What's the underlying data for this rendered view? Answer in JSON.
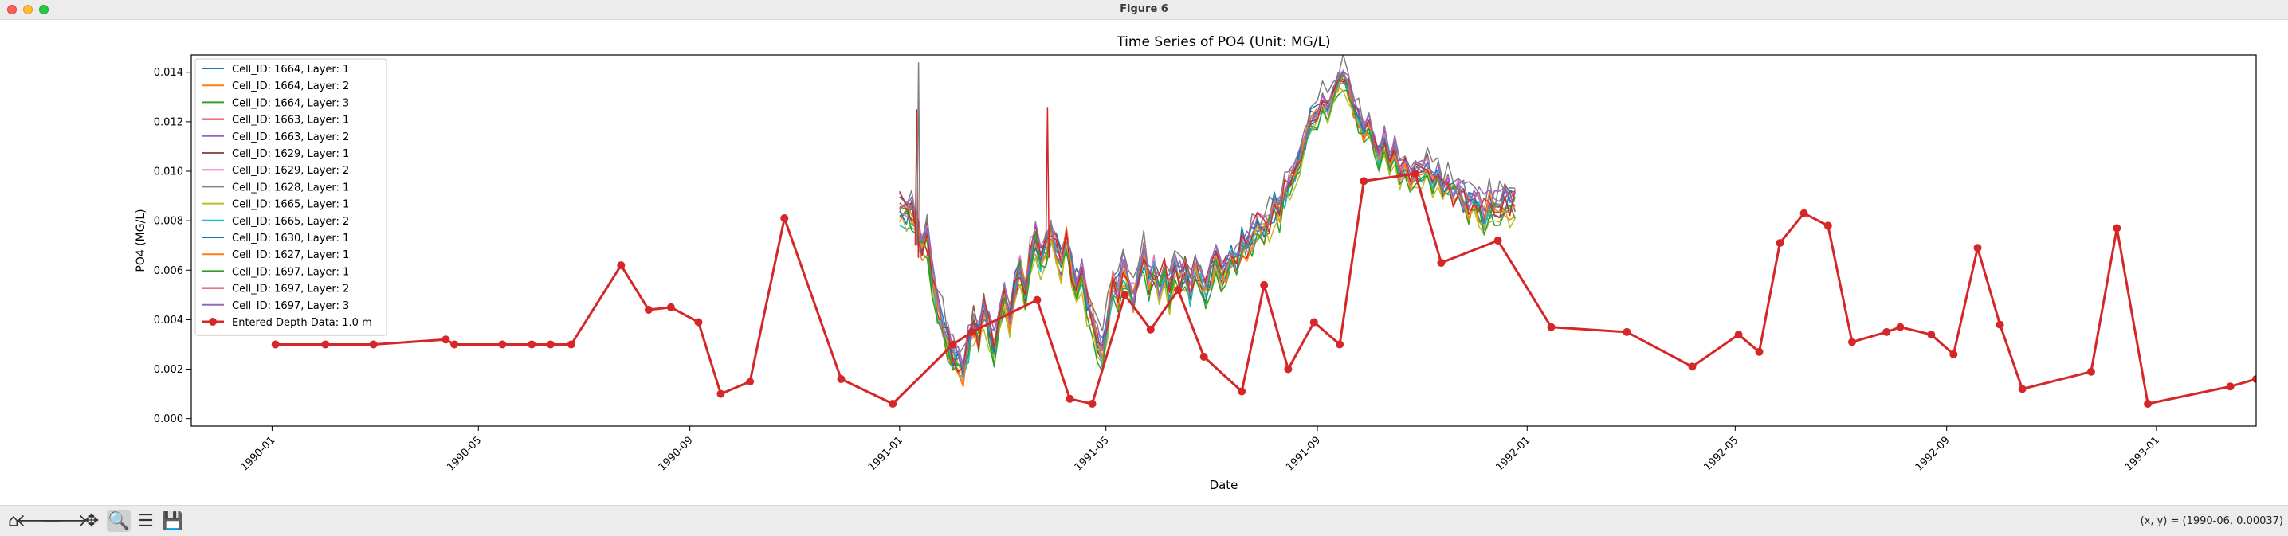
{
  "window": {
    "title": "Figure 6"
  },
  "toolbar": {
    "buttons": [
      {
        "name": "home-icon",
        "glyph": "⌂"
      },
      {
        "name": "back-arrow-icon",
        "glyph": "🡐"
      },
      {
        "name": "forward-arrow-icon",
        "glyph": "🡒"
      },
      {
        "name": "pan-icon",
        "glyph": "✥"
      },
      {
        "name": "zoom-icon",
        "glyph": "🔍"
      },
      {
        "name": "configure-subplots-icon",
        "glyph": "☰"
      },
      {
        "name": "save-icon",
        "glyph": "💾"
      }
    ],
    "coords": "(x, y) = (1990-06, 0.00037)"
  },
  "chart_data": {
    "type": "line",
    "title": "Time Series of PO4 (Unit: MG/L)",
    "xlabel": "Date",
    "ylabel": "PO4 (MG/L)",
    "xlim": [
      "1989-11-15",
      "1993-02-28"
    ],
    "ylim": [
      -0.0003,
      0.0147
    ],
    "xticks": [
      "1990-01",
      "1990-05",
      "1990-09",
      "1991-01",
      "1991-05",
      "1991-09",
      "1992-01",
      "1992-05",
      "1992-09",
      "1993-01"
    ],
    "yticks": [
      "0.000",
      "0.002",
      "0.004",
      "0.006",
      "0.008",
      "0.010",
      "0.012",
      "0.014"
    ],
    "grid": false,
    "legend_position": "upper-left",
    "model_period": [
      "1991-01-01",
      "1991-12-25"
    ],
    "base_series": [
      [
        "1991-01-01",
        0.0085
      ],
      [
        "1991-01-05",
        0.0082
      ],
      [
        "1991-01-08",
        0.0084
      ],
      [
        "1991-01-11",
        0.0078
      ],
      [
        "1991-01-14",
        0.0068
      ],
      [
        "1991-01-17",
        0.0072
      ],
      [
        "1991-01-20",
        0.0055
      ],
      [
        "1991-01-23",
        0.0045
      ],
      [
        "1991-01-26",
        0.0038
      ],
      [
        "1991-01-29",
        0.003
      ],
      [
        "1991-02-01",
        0.0025
      ],
      [
        "1991-02-04",
        0.0022
      ],
      [
        "1991-02-07",
        0.0018
      ],
      [
        "1991-02-10",
        0.003
      ],
      [
        "1991-02-13",
        0.0038
      ],
      [
        "1991-02-16",
        0.0033
      ],
      [
        "1991-02-19",
        0.0045
      ],
      [
        "1991-02-22",
        0.0035
      ],
      [
        "1991-02-25",
        0.0028
      ],
      [
        "1991-02-28",
        0.004
      ],
      [
        "1991-03-03",
        0.005
      ],
      [
        "1991-03-06",
        0.004
      ],
      [
        "1991-03-09",
        0.0052
      ],
      [
        "1991-03-12",
        0.006
      ],
      [
        "1991-03-15",
        0.005
      ],
      [
        "1991-03-18",
        0.0065
      ],
      [
        "1991-03-21",
        0.0072
      ],
      [
        "1991-03-24",
        0.0063
      ],
      [
        "1991-03-27",
        0.0068
      ],
      [
        "1991-03-30",
        0.0075
      ],
      [
        "1991-04-02",
        0.0068
      ],
      [
        "1991-04-05",
        0.0062
      ],
      [
        "1991-04-08",
        0.0072
      ],
      [
        "1991-04-11",
        0.006
      ],
      [
        "1991-04-14",
        0.0055
      ],
      [
        "1991-04-17",
        0.0058
      ],
      [
        "1991-04-20",
        0.0045
      ],
      [
        "1991-04-23",
        0.004
      ],
      [
        "1991-04-26",
        0.003
      ],
      [
        "1991-04-29",
        0.0025
      ],
      [
        "1991-05-02",
        0.004
      ],
      [
        "1991-05-05",
        0.0055
      ],
      [
        "1991-05-08",
        0.005
      ],
      [
        "1991-05-11",
        0.006
      ],
      [
        "1991-05-14",
        0.0055
      ],
      [
        "1991-05-17",
        0.0048
      ],
      [
        "1991-05-20",
        0.0058
      ],
      [
        "1991-05-23",
        0.0065
      ],
      [
        "1991-05-26",
        0.0055
      ],
      [
        "1991-05-29",
        0.006
      ],
      [
        "1991-06-01",
        0.0052
      ],
      [
        "1991-06-04",
        0.0058
      ],
      [
        "1991-06-07",
        0.005
      ],
      [
        "1991-06-10",
        0.0062
      ],
      [
        "1991-06-13",
        0.0055
      ],
      [
        "1991-06-16",
        0.0058
      ],
      [
        "1991-06-19",
        0.0052
      ],
      [
        "1991-06-22",
        0.006
      ],
      [
        "1991-06-25",
        0.0055
      ],
      [
        "1991-06-28",
        0.005
      ],
      [
        "1991-07-01",
        0.0058
      ],
      [
        "1991-07-04",
        0.0062
      ],
      [
        "1991-07-07",
        0.0056
      ],
      [
        "1991-07-10",
        0.006
      ],
      [
        "1991-07-13",
        0.0065
      ],
      [
        "1991-07-16",
        0.0063
      ],
      [
        "1991-07-19",
        0.007
      ],
      [
        "1991-07-22",
        0.0068
      ],
      [
        "1991-07-25",
        0.0072
      ],
      [
        "1991-07-28",
        0.0078
      ],
      [
        "1991-08-01",
        0.0076
      ],
      [
        "1991-08-04",
        0.008
      ],
      [
        "1991-08-07",
        0.0085
      ],
      [
        "1991-08-10",
        0.0083
      ],
      [
        "1991-08-13",
        0.009
      ],
      [
        "1991-08-16",
        0.0095
      ],
      [
        "1991-08-19",
        0.0098
      ],
      [
        "1991-08-22",
        0.0105
      ],
      [
        "1991-08-25",
        0.0112
      ],
      [
        "1991-08-28",
        0.012
      ],
      [
        "1991-09-01",
        0.0122
      ],
      [
        "1991-09-04",
        0.0128
      ],
      [
        "1991-09-07",
        0.0125
      ],
      [
        "1991-09-10",
        0.0132
      ],
      [
        "1991-09-13",
        0.0135
      ],
      [
        "1991-09-16",
        0.0138
      ],
      [
        "1991-09-19",
        0.0133
      ],
      [
        "1991-09-22",
        0.0125
      ],
      [
        "1991-09-25",
        0.012
      ],
      [
        "1991-09-28",
        0.0115
      ],
      [
        "1991-10-01",
        0.0118
      ],
      [
        "1991-10-04",
        0.011
      ],
      [
        "1991-10-07",
        0.0105
      ],
      [
        "1991-10-10",
        0.0112
      ],
      [
        "1991-10-13",
        0.01
      ],
      [
        "1991-10-16",
        0.0108
      ],
      [
        "1991-10-19",
        0.0098
      ],
      [
        "1991-10-22",
        0.0102
      ],
      [
        "1991-10-25",
        0.0095
      ],
      [
        "1991-10-28",
        0.01
      ],
      [
        "1991-11-01",
        0.0098
      ],
      [
        "1991-11-04",
        0.0102
      ],
      [
        "1991-11-07",
        0.0095
      ],
      [
        "1991-11-10",
        0.0098
      ],
      [
        "1991-11-13",
        0.0092
      ],
      [
        "1991-11-16",
        0.0095
      ],
      [
        "1991-11-19",
        0.009
      ],
      [
        "1991-11-22",
        0.0093
      ],
      [
        "1991-11-25",
        0.0088
      ],
      [
        "1991-11-28",
        0.0086
      ],
      [
        "1991-12-01",
        0.009
      ],
      [
        "1991-12-04",
        0.0085
      ],
      [
        "1991-12-07",
        0.0082
      ],
      [
        "1991-12-10",
        0.0086
      ],
      [
        "1991-12-13",
        0.0084
      ],
      [
        "1991-12-16",
        0.0085
      ],
      [
        "1991-12-19",
        0.0087
      ],
      [
        "1991-12-22",
        0.0086
      ],
      [
        "1991-12-25",
        0.0087
      ]
    ],
    "series": [
      {
        "name": "Cell_ID: 1664, Layer: 1",
        "color": "#1f77b4",
        "offset": 0.0
      },
      {
        "name": "Cell_ID: 1664, Layer: 2",
        "color": "#ff7f0e",
        "offset": -0.0001
      },
      {
        "name": "Cell_ID: 1664, Layer: 3",
        "color": "#2ca02c",
        "offset": -0.0002
      },
      {
        "name": "Cell_ID: 1663, Layer: 1",
        "color": "#d62728",
        "offset": 0.0001
      },
      {
        "name": "Cell_ID: 1663, Layer: 2",
        "color": "#9467bd",
        "offset": 0.0003
      },
      {
        "name": "Cell_ID: 1629, Layer: 1",
        "color": "#8c564b",
        "offset": 0.0002
      },
      {
        "name": "Cell_ID: 1629, Layer: 2",
        "color": "#e377c2",
        "offset": 0.0001
      },
      {
        "name": "Cell_ID: 1628, Layer: 1",
        "color": "#7f7f7f",
        "offset": 0.0006
      },
      {
        "name": "Cell_ID: 1665, Layer: 1",
        "color": "#bcbd22",
        "offset": -0.0003
      },
      {
        "name": "Cell_ID: 1665, Layer: 2",
        "color": "#17becf",
        "offset": -0.0001
      },
      {
        "name": "Cell_ID: 1630, Layer: 1",
        "color": "#1f77b4",
        "offset": 0.0002
      },
      {
        "name": "Cell_ID: 1627, Layer: 1",
        "color": "#ff7f0e",
        "offset": 0.0
      },
      {
        "name": "Cell_ID: 1697, Layer: 1",
        "color": "#2ca02c",
        "offset": -0.0002
      },
      {
        "name": "Cell_ID: 1697, Layer: 2",
        "color": "#d62728",
        "offset": 0.0001
      },
      {
        "name": "Cell_ID: 1697, Layer: 3",
        "color": "#9467bd",
        "offset": 0.0003
      }
    ],
    "observed": {
      "name": "Entered Depth Data: 1.0 m",
      "color": "#d62728",
      "points": [
        [
          "1990-01-03",
          0.003
        ],
        [
          "1990-02-01",
          0.003
        ],
        [
          "1990-03-01",
          0.003
        ],
        [
          "1990-04-12",
          0.0032
        ],
        [
          "1990-04-17",
          0.003
        ],
        [
          "1990-05-15",
          0.003
        ],
        [
          "1990-06-01",
          0.003
        ],
        [
          "1990-06-12",
          0.003
        ],
        [
          "1990-06-24",
          0.003
        ],
        [
          "1990-07-23",
          0.0062
        ],
        [
          "1990-08-08",
          0.0044
        ],
        [
          "1990-08-21",
          0.0045
        ],
        [
          "1990-09-06",
          0.0039
        ],
        [
          "1990-09-19",
          0.001
        ],
        [
          "1990-10-06",
          0.0015
        ],
        [
          "1990-10-26",
          0.0081
        ],
        [
          "1990-11-28",
          0.0016
        ],
        [
          "1990-12-28",
          0.0006
        ],
        [
          "1991-02-01",
          0.003
        ],
        [
          "1991-02-12",
          0.0035
        ],
        [
          "1991-03-22",
          0.0048
        ],
        [
          "1991-04-10",
          0.0008
        ],
        [
          "1991-04-23",
          0.0006
        ],
        [
          "1991-05-12",
          0.005
        ],
        [
          "1991-05-27",
          0.0036
        ],
        [
          "1991-06-12",
          0.0052
        ],
        [
          "1991-06-27",
          0.0025
        ],
        [
          "1991-07-19",
          0.0011
        ],
        [
          "1991-08-01",
          0.0054
        ],
        [
          "1991-08-15",
          0.002
        ],
        [
          "1991-08-30",
          0.0039
        ],
        [
          "1991-09-14",
          0.003
        ],
        [
          "1991-09-28",
          0.0096
        ],
        [
          "1991-10-28",
          0.0099
        ],
        [
          "1991-11-12",
          0.0063
        ],
        [
          "1991-12-15",
          0.0072
        ],
        [
          "1992-01-15",
          0.0037
        ],
        [
          "1992-02-28",
          0.0035
        ],
        [
          "1992-04-06",
          0.0021
        ],
        [
          "1992-05-03",
          0.0034
        ],
        [
          "1992-05-15",
          0.0027
        ],
        [
          "1992-05-27",
          0.0071
        ],
        [
          "1992-06-10",
          0.0083
        ],
        [
          "1992-06-24",
          0.0078
        ],
        [
          "1992-07-08",
          0.0031
        ],
        [
          "1992-07-28",
          0.0035
        ],
        [
          "1992-08-05",
          0.0037
        ],
        [
          "1992-08-23",
          0.0034
        ],
        [
          "1992-09-05",
          0.0026
        ],
        [
          "1992-09-19",
          0.0069
        ],
        [
          "1992-10-02",
          0.0038
        ],
        [
          "1992-10-15",
          0.0012
        ],
        [
          "1992-11-24",
          0.0019
        ],
        [
          "1992-12-09",
          0.0077
        ],
        [
          "1992-12-27",
          0.0006
        ],
        [
          "1993-02-13",
          0.0013
        ],
        [
          "1993-02-28",
          0.0016
        ]
      ]
    },
    "spikes": [
      [
        "1991-01-11",
        0.0125
      ],
      [
        "1991-01-12",
        0.0144
      ],
      [
        "1991-03-28",
        0.0126
      ]
    ]
  }
}
